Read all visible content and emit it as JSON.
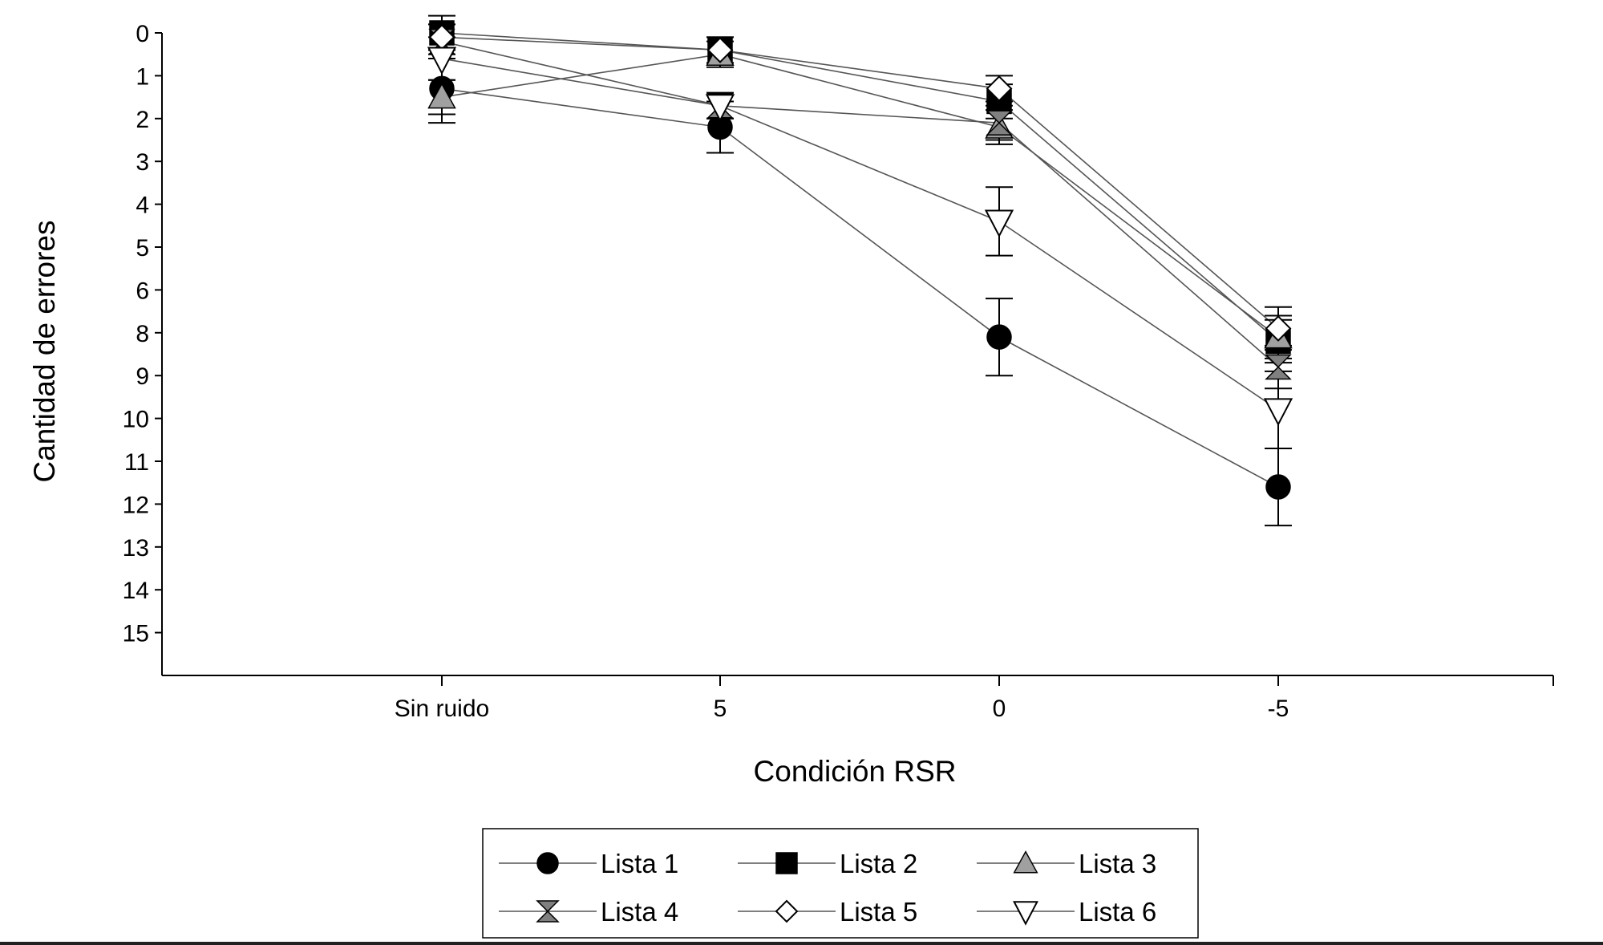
{
  "chart_data": {
    "type": "line",
    "xlabel": "Condición RSR",
    "ylabel": "Cantidad de errores",
    "categories": [
      "Sin ruido",
      "5",
      "0",
      "-5"
    ],
    "ylim": [
      0,
      15
    ],
    "y_inverted": true,
    "yticks": [
      "0",
      "1",
      "2",
      "3",
      "4",
      "5",
      "6",
      "8",
      "9",
      "10",
      "11",
      "12",
      "13",
      "14",
      "15"
    ],
    "legend_position": "bottom",
    "series": [
      {
        "name": "Lista 1",
        "marker": "circle-filled",
        "color": "#000000",
        "values": [
          1.3,
          2.2,
          7.1,
          10.6
        ],
        "errors": [
          0.8,
          0.6,
          0.9,
          0.9
        ]
      },
      {
        "name": "Lista 2",
        "marker": "square-filled",
        "color": "#000000",
        "values": [
          0.0,
          0.4,
          1.6,
          7.2
        ],
        "errors": [
          0.4,
          0.3,
          0.4,
          0.5
        ]
      },
      {
        "name": "Lista 3",
        "marker": "triangle-up-gray",
        "color": "#a0a0a0",
        "values": [
          1.5,
          0.5,
          2.2,
          7.1
        ],
        "errors": [
          0.4,
          0.3,
          0.4,
          0.5
        ]
      },
      {
        "name": "Lista 4",
        "marker": "hourglass",
        "color": "#808080",
        "values": [
          0.2,
          1.7,
          2.1,
          7.8
        ],
        "errors": [
          0.4,
          0.3,
          0.4,
          0.5
        ]
      },
      {
        "name": "Lista 5",
        "marker": "diamond-open",
        "color": "#ffffff",
        "values": [
          0.1,
          0.4,
          1.3,
          6.9
        ],
        "errors": [
          0.3,
          0.3,
          0.3,
          0.5
        ]
      },
      {
        "name": "Lista 6",
        "marker": "triangle-down-open",
        "color": "#ffffff",
        "values": [
          0.6,
          1.7,
          4.4,
          8.8
        ],
        "errors": [
          0.5,
          0.3,
          0.8,
          0.9
        ]
      }
    ]
  }
}
